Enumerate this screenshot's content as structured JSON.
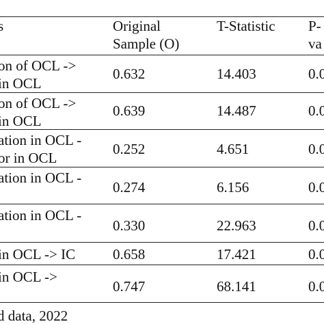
{
  "table": {
    "headers": {
      "c1": "s",
      "c2": [
        "Original",
        "Sample (O)"
      ],
      "c3": "T-Statistic",
      "c4": [
        "P-",
        "va"
      ]
    },
    "rows": [
      {
        "c1": [
          "on of OCL ->",
          " in OCL"
        ],
        "c2": "0.632",
        "c3": "14.403",
        "c4": "0.0"
      },
      {
        "c1": [
          "on of OCL ->",
          " in OCL"
        ],
        "c2": "0.639",
        "c3": "14.487",
        "c4": "0.0"
      },
      {
        "c1": [
          "ation in OCL -",
          "or in OCL"
        ],
        "c2": "0.252",
        "c3": "4.651",
        "c4": "0.0"
      },
      {
        "c1": [
          "ation in OCL -",
          ""
        ],
        "c2": "0.274",
        "c3": "6.156",
        "c4": "0.0"
      },
      {
        "c1": [
          "ation in OCL -",
          ""
        ],
        "c2": "0.330",
        "c3": "22.963",
        "c4": "0.0"
      },
      {
        "c1": [
          " in OCL -> IC",
          ""
        ],
        "c2": "0.658",
        "c3": "17.421",
        "c4": "0.0"
      },
      {
        "c1": [
          " in OCL ->",
          ""
        ],
        "c2": "0.747",
        "c3": "68.141",
        "c4": "0.0"
      }
    ]
  },
  "footer": "d data, 2022"
}
